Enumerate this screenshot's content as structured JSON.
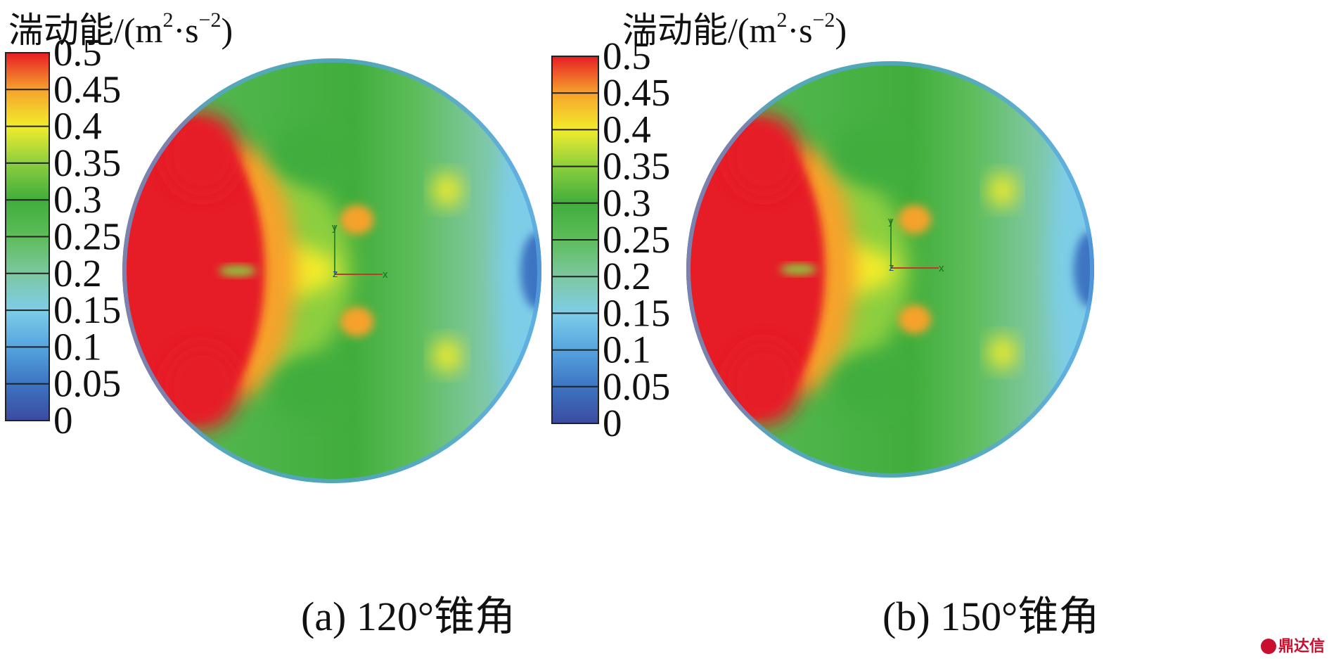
{
  "chart_data": [
    {
      "type": "heatmap",
      "panel": "a",
      "colorbar_title": "湍动能/(m",
      "colorbar_sup1": "2",
      "colorbar_mid": "·s",
      "colorbar_sup2": "−2",
      "colorbar_title_end": ")",
      "colorbar_ticks": [
        "0.5",
        "0.45",
        "0.4",
        "0.35",
        "0.3",
        "0.25",
        "0.2",
        "0.15",
        "0.1",
        "0.05",
        "0"
      ],
      "colorbar_range": [
        0,
        0.5
      ],
      "axis_labels": {
        "y": "y",
        "z": "z",
        "x": "x"
      },
      "caption": "(a) 120°锥角"
    },
    {
      "type": "heatmap",
      "panel": "b",
      "colorbar_title": "湍动能/(m",
      "colorbar_sup1": "2",
      "colorbar_mid": "·s",
      "colorbar_sup2": "−2",
      "colorbar_title_end": ")",
      "colorbar_ticks": [
        "0.5",
        "0.45",
        "0.4",
        "0.35",
        "0.3",
        "0.25",
        "0.2",
        "0.15",
        "0.1",
        "0.05",
        "0"
      ],
      "colorbar_range": [
        0,
        0.5
      ],
      "axis_labels": {
        "y": "y",
        "z": "z",
        "x": "x"
      },
      "caption": "(b) 150°锥角"
    }
  ],
  "colors": {
    "c0": "#3b4ba0",
    "c1": "#3d74c2",
    "c2": "#55a4df",
    "c3": "#7ecde8",
    "c4": "#7dc7a0",
    "c5": "#5dbd5a",
    "c6": "#41ad3c",
    "c7": "#8ccf3f",
    "c8": "#f2ec2b",
    "c9": "#f6a22c",
    "c10": "#e61d25"
  },
  "watermark": "鼎达信"
}
